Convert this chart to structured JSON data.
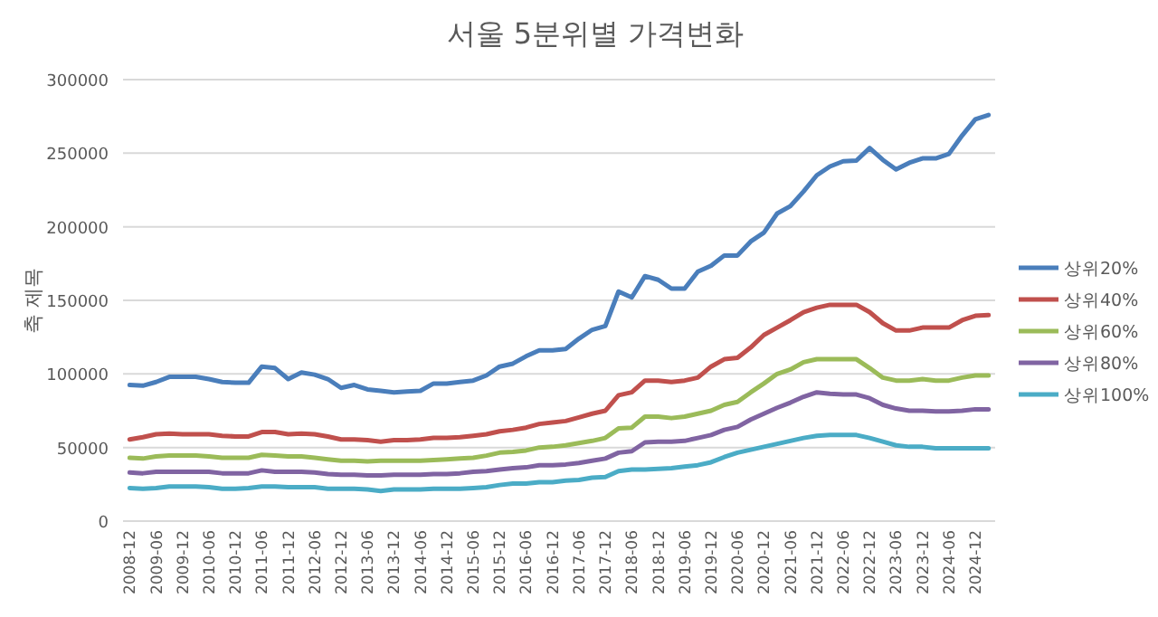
{
  "chart_data": {
    "type": "line",
    "title": "서울 5분위별 가격변화",
    "ylabel": "축 제목",
    "categories": [
      "2008-12",
      null,
      "2009-06",
      null,
      "2009-12",
      null,
      "2010-06",
      null,
      "2010-12",
      null,
      "2011-06",
      null,
      "2011-12",
      null,
      "2012-06",
      null,
      "2012-12",
      null,
      "2013-06",
      null,
      "2013-12",
      null,
      "2014-06",
      null,
      "2014-12",
      null,
      "2015-06",
      null,
      "2015-12",
      null,
      "2016-06",
      null,
      "2016-12",
      null,
      "2017-06",
      null,
      "2017-12",
      null,
      "2018-06",
      null,
      "2018-12",
      null,
      "2019-06",
      null,
      "2019-12",
      null,
      "2020-06",
      null,
      "2020-12",
      null,
      "2021-06",
      null,
      "2021-12",
      null,
      "2022-06",
      null,
      "2022-12",
      null,
      "2023-06",
      null,
      "2023-12",
      null,
      "2024-06",
      null,
      "2024-12",
      null
    ],
    "ylim": [
      0,
      300000
    ],
    "yticks": [
      0,
      50000,
      100000,
      150000,
      200000,
      250000,
      300000
    ],
    "grid": "y",
    "legend": "right",
    "series": [
      {
        "name": "상위20%",
        "color": "#4a7ebb",
        "values": [
          92500,
          92000,
          94500,
          98000,
          98000,
          98000,
          96500,
          94500,
          94000,
          94000,
          105000,
          104000,
          96500,
          101000,
          99500,
          96500,
          90500,
          92500,
          89500,
          88500,
          87500,
          88000,
          88500,
          93500,
          93500,
          94500,
          95500,
          99000,
          105000,
          107000,
          112000,
          116000,
          116000,
          117000,
          124000,
          130000,
          132500,
          156000,
          152000,
          166500,
          164000,
          158000,
          158000,
          169500,
          173500,
          180500,
          180500,
          190000,
          196000,
          209000,
          214000,
          224000,
          235000,
          241000,
          244500,
          245000,
          253500,
          245500,
          239000,
          243500,
          246500,
          246500,
          249500,
          262000,
          273000,
          276000
        ]
      },
      {
        "name": "상위40%",
        "color": "#c0504d",
        "values": [
          55500,
          57000,
          59000,
          59500,
          59000,
          59000,
          59000,
          58000,
          57500,
          57500,
          60500,
          60500,
          59000,
          59500,
          59000,
          57500,
          55500,
          55500,
          55000,
          54000,
          55000,
          55000,
          55500,
          56500,
          56500,
          57000,
          58000,
          59000,
          61000,
          62000,
          63500,
          66000,
          67000,
          68000,
          70500,
          73000,
          75000,
          85500,
          87500,
          95500,
          95500,
          94500,
          95500,
          97500,
          105000,
          110000,
          111000,
          118000,
          126500,
          131500,
          136500,
          142000,
          145000,
          147000,
          147000,
          147000,
          142000,
          134500,
          129500,
          129500,
          131500,
          131500,
          131500,
          136500,
          139500,
          140000
        ]
      },
      {
        "name": "상위60%",
        "color": "#9bbb59",
        "values": [
          43000,
          42500,
          44000,
          44500,
          44500,
          44500,
          44000,
          43000,
          43000,
          43000,
          45000,
          44500,
          44000,
          44000,
          43000,
          42000,
          41000,
          41000,
          40500,
          41000,
          41000,
          41000,
          41000,
          41500,
          42000,
          42500,
          43000,
          44500,
          46500,
          47000,
          48000,
          50000,
          50500,
          51500,
          53000,
          54500,
          56500,
          63000,
          63500,
          71000,
          71000,
          70000,
          71000,
          73000,
          75000,
          79000,
          81000,
          87500,
          93500,
          100000,
          103000,
          108000,
          110000,
          110000,
          110000,
          110000,
          104000,
          97500,
          95500,
          95500,
          96500,
          95500,
          95500,
          97500,
          99000,
          99000
        ]
      },
      {
        "name": "상위80%",
        "color": "#8064a2",
        "values": [
          33000,
          32500,
          33500,
          33500,
          33500,
          33500,
          33500,
          32500,
          32500,
          32500,
          34500,
          33500,
          33500,
          33500,
          33000,
          32000,
          31500,
          31500,
          31000,
          31000,
          31500,
          31500,
          31500,
          32000,
          32000,
          32500,
          33500,
          34000,
          35000,
          36000,
          36500,
          38000,
          38000,
          38500,
          39500,
          41000,
          42500,
          46500,
          47500,
          53500,
          54000,
          54000,
          54500,
          56500,
          58500,
          62000,
          64000,
          69000,
          73000,
          77000,
          80500,
          84500,
          87500,
          86500,
          86000,
          86000,
          83500,
          79000,
          76500,
          75000,
          75000,
          74500,
          74500,
          75000,
          76000,
          76000
        ]
      },
      {
        "name": "상위100%",
        "color": "#4bacc6",
        "values": [
          22500,
          22000,
          22500,
          23500,
          23500,
          23500,
          23000,
          22000,
          22000,
          22500,
          23500,
          23500,
          23000,
          23000,
          23000,
          22000,
          22000,
          22000,
          21500,
          20500,
          21500,
          21500,
          21500,
          22000,
          22000,
          22000,
          22500,
          23000,
          24500,
          25500,
          25500,
          26500,
          26500,
          27500,
          28000,
          29500,
          30000,
          34000,
          35000,
          35000,
          35500,
          36000,
          37000,
          38000,
          40000,
          43500,
          46500,
          48500,
          50500,
          52500,
          54500,
          56500,
          58000,
          58500,
          58500,
          58500,
          56500,
          54000,
          51500,
          50500,
          50500,
          49500,
          49500,
          49500,
          49500,
          49500
        ]
      }
    ]
  }
}
